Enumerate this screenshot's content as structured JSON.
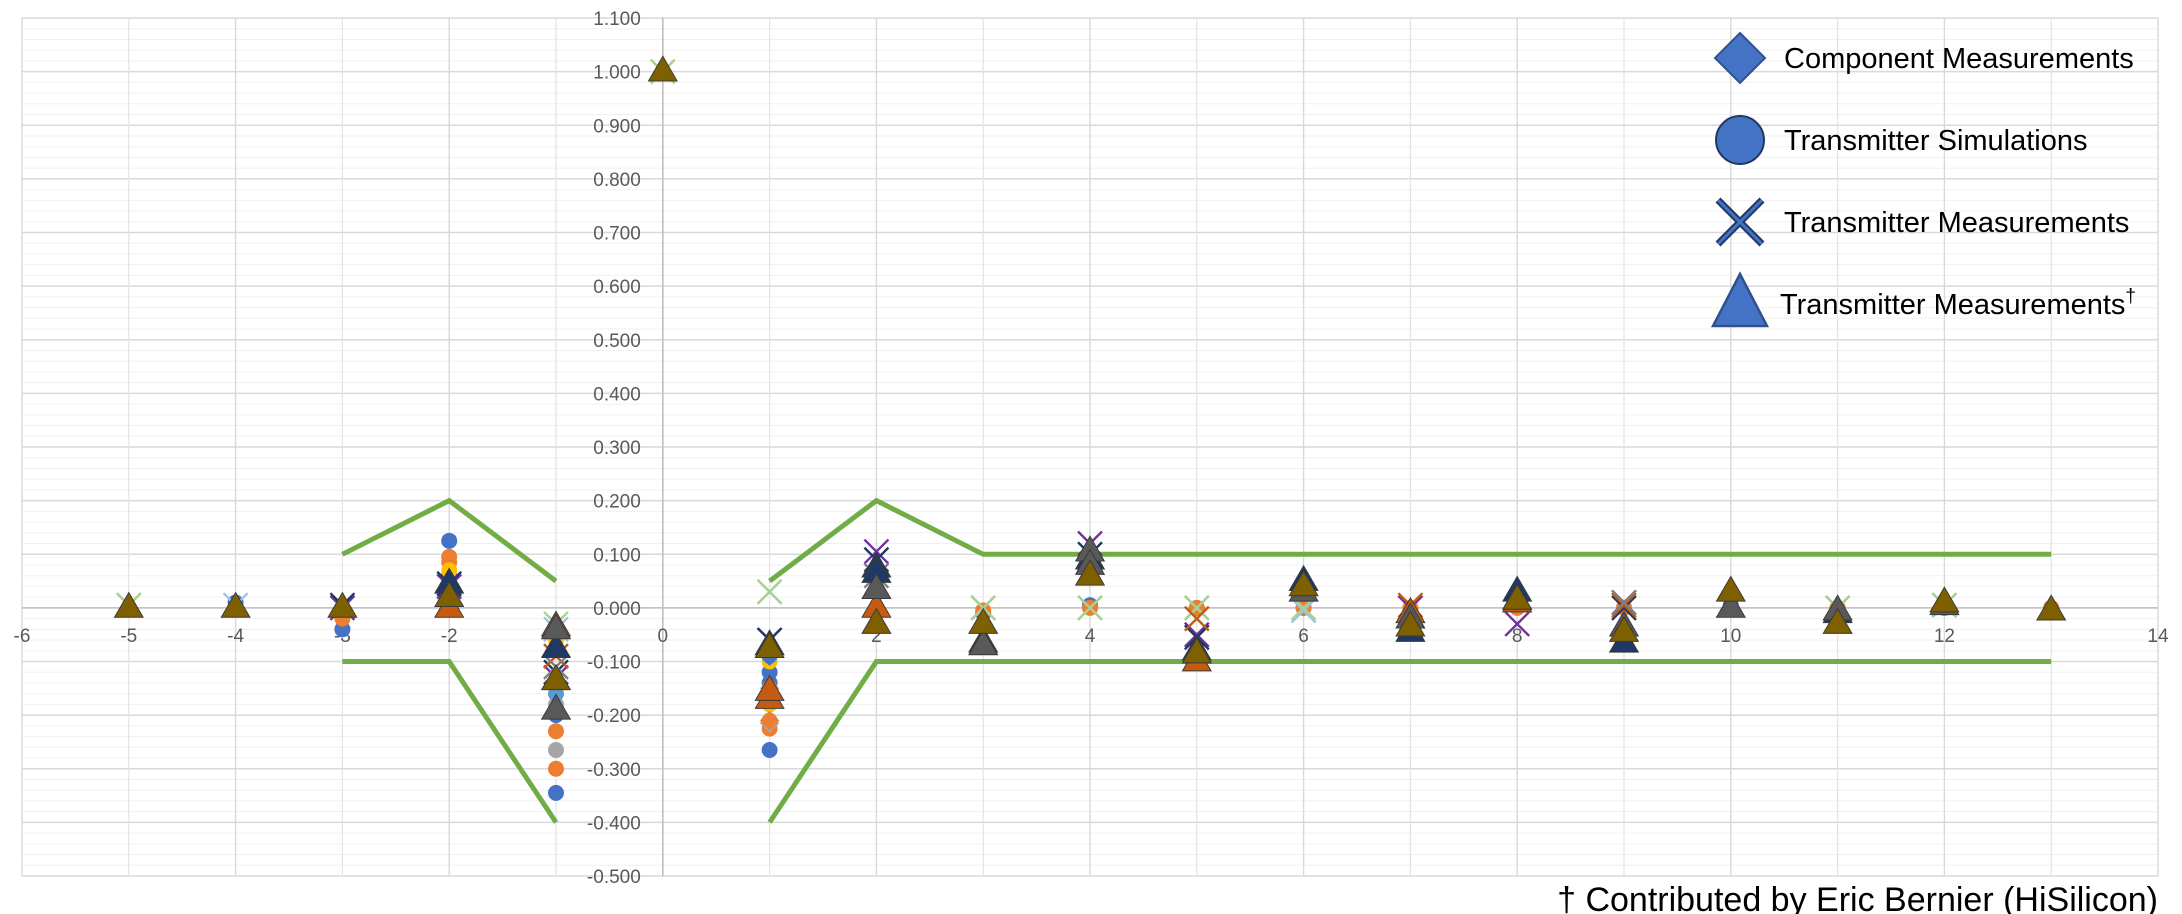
{
  "chart_data": {
    "type": "scatter",
    "title": "",
    "xlabel": "",
    "ylabel": "",
    "xlim": [
      -6,
      14
    ],
    "ylim": [
      -0.5,
      1.1
    ],
    "x_major_step": 2,
    "y_major_step": 0.1,
    "y_minor_step": 0.02,
    "x_tick_labels": [
      "-6",
      "-5",
      "-4",
      "-3",
      "-2",
      "0",
      "2",
      "4",
      "6",
      "8",
      "10",
      "12",
      "14"
    ],
    "y_tick_labels": [
      "-0.500",
      "-0.400",
      "-0.300",
      "-0.200",
      "-0.100",
      "0.000",
      "0.100",
      "0.200",
      "0.300",
      "0.400",
      "0.500",
      "0.600",
      "0.700",
      "0.800",
      "0.900",
      "1.000",
      "1.100"
    ],
    "grid": true,
    "legend_position": "top-right",
    "legend": [
      {
        "label": "Component Measurements",
        "marker": "diamond",
        "color": "#4472c4",
        "stroke": "#2f528f"
      },
      {
        "label": "Transmitter Simulations",
        "marker": "circle",
        "color": "#4472c4",
        "stroke": "#1f3864"
      },
      {
        "label": "Transmitter Measurements",
        "marker": "x",
        "color": "#203864",
        "stroke": "#203864"
      },
      {
        "label": "Transmitter Measurements",
        "superscript": "†",
        "marker": "triangle",
        "color": "#4472c4",
        "stroke": "#2f528f"
      }
    ],
    "limit_lines": {
      "color": "#70ad47",
      "upper": [
        [
          [
            -3,
            0.1
          ],
          [
            -2,
            0.2
          ],
          [
            -1,
            0.05
          ]
        ],
        [
          [
            1,
            0.05
          ],
          [
            2,
            0.2
          ],
          [
            3,
            0.1
          ],
          [
            13,
            0.1
          ]
        ]
      ],
      "lower": [
        [
          [
            -3,
            -0.1
          ],
          [
            -2,
            -0.1
          ],
          [
            -1,
            -0.4
          ]
        ],
        [
          [
            1,
            -0.4
          ],
          [
            2,
            -0.1
          ],
          [
            13,
            -0.1
          ]
        ]
      ]
    },
    "series": [
      {
        "marker": "circle",
        "color": "#4472c4",
        "points": [
          [
            -4,
            0.01
          ],
          [
            -3,
            -0.04
          ],
          [
            -2,
            0.125
          ],
          [
            -2,
            0.06
          ],
          [
            -1,
            -0.345
          ],
          [
            -1,
            -0.2
          ],
          [
            1,
            -0.265
          ],
          [
            1,
            -0.12
          ],
          [
            1,
            -0.14
          ],
          [
            3,
            -0.01
          ],
          [
            4,
            0.005
          ],
          [
            5,
            0.0
          ],
          [
            6,
            0.0
          ],
          [
            7,
            -0.005
          ],
          [
            8,
            0.01
          ],
          [
            9,
            0.0
          ],
          [
            10,
            0.005
          ],
          [
            11,
            0.0
          ],
          [
            12,
            0.0
          ],
          [
            13,
            0.0
          ]
        ]
      },
      {
        "marker": "circle",
        "color": "#ed7d31",
        "points": [
          [
            -3,
            -0.02
          ],
          [
            -2,
            0.095
          ],
          [
            -2,
            0.085
          ],
          [
            -1,
            -0.3
          ],
          [
            -1,
            -0.23
          ],
          [
            -1,
            -0.05
          ],
          [
            1,
            -0.225
          ],
          [
            1,
            -0.15
          ],
          [
            3,
            -0.005
          ],
          [
            4,
            0.0
          ],
          [
            5,
            0.0
          ],
          [
            6,
            0.0
          ],
          [
            7,
            0.0
          ],
          [
            8,
            0.0
          ],
          [
            9,
            0.0
          ],
          [
            10,
            0.0
          ],
          [
            11,
            0.0
          ],
          [
            12,
            0.0
          ],
          [
            13,
            0.0
          ]
        ]
      },
      {
        "marker": "circle",
        "color": "#a5a5a5",
        "points": [
          [
            -2,
            0.05
          ],
          [
            -1,
            -0.265
          ],
          [
            -1,
            -0.18
          ],
          [
            1,
            -0.21
          ],
          [
            1,
            -0.155
          ]
        ]
      },
      {
        "marker": "circle",
        "color": "#ffc000",
        "points": [
          [
            -2,
            0.07
          ],
          [
            -1,
            -0.06
          ],
          [
            1,
            -0.18
          ],
          [
            1,
            -0.1
          ]
        ]
      },
      {
        "marker": "circle",
        "color": "#5b9bd5",
        "points": [
          [
            -1,
            -0.16
          ],
          [
            1,
            -0.09
          ],
          [
            1,
            -0.07
          ]
        ]
      },
      {
        "marker": "diamond",
        "color": "#4472c4",
        "points": [
          [
            -1,
            -0.04
          ],
          [
            1,
            -0.09
          ],
          [
            1,
            -0.08
          ]
        ]
      },
      {
        "marker": "diamond",
        "color": "#a5a5a5",
        "points": [
          [
            1,
            -0.215
          ],
          [
            1,
            -0.15
          ]
        ]
      },
      {
        "marker": "diamond",
        "color": "#ed7d31",
        "points": [
          [
            1,
            -0.21
          ]
        ]
      },
      {
        "marker": "x",
        "color": "#9dc3e6",
        "points": [
          [
            -5,
            0.005
          ],
          [
            -4,
            0.005
          ],
          [
            -1,
            -0.04
          ],
          [
            1,
            0.03
          ],
          [
            3,
            0.0
          ],
          [
            4,
            0.0
          ],
          [
            5,
            0.0
          ],
          [
            6,
            -0.005
          ],
          [
            7,
            0.0
          ],
          [
            9,
            0.005
          ],
          [
            11,
            0.0
          ],
          [
            12,
            0.005
          ]
        ]
      },
      {
        "marker": "x",
        "color": "#a9d18e",
        "points": [
          [
            -5,
            0.005
          ],
          [
            0,
            1.0
          ],
          [
            -1,
            -0.03
          ],
          [
            1,
            0.03
          ],
          [
            3,
            0.0
          ],
          [
            4,
            0.0
          ],
          [
            5,
            0.0
          ],
          [
            6,
            0.0
          ],
          [
            7,
            0.0
          ],
          [
            11,
            0.0
          ],
          [
            12,
            0.005
          ]
        ]
      },
      {
        "marker": "x",
        "color": "#7030a0",
        "points": [
          [
            -3,
            0.0
          ],
          [
            -2,
            0.04
          ],
          [
            -1,
            -0.13
          ],
          [
            1,
            -0.06
          ],
          [
            2,
            0.105
          ],
          [
            4,
            0.12
          ],
          [
            5,
            -0.05
          ],
          [
            7,
            0.0
          ],
          [
            8,
            -0.03
          ],
          [
            9,
            0.01
          ]
        ]
      },
      {
        "marker": "x",
        "color": "#203864",
        "points": [
          [
            -3,
            0.005
          ],
          [
            -2,
            0.045
          ],
          [
            -1,
            -0.12
          ],
          [
            1,
            -0.06
          ],
          [
            2,
            0.09
          ],
          [
            4,
            0.1
          ],
          [
            5,
            -0.055
          ],
          [
            9,
            0.0
          ]
        ]
      },
      {
        "marker": "x",
        "color": "#c55a11",
        "points": [
          [
            -1,
            -0.09
          ],
          [
            5,
            -0.02
          ],
          [
            7,
            0.005
          ],
          [
            9,
            0.005
          ]
        ]
      },
      {
        "marker": "x",
        "color": "#7f7f7f",
        "points": [
          [
            -1,
            -0.11
          ],
          [
            2,
            0.06
          ],
          [
            9,
            0.01
          ]
        ]
      },
      {
        "marker": "triangle",
        "color": "#c55a11",
        "points": [
          [
            -2,
            0.0
          ],
          [
            -1,
            -0.035
          ],
          [
            1,
            -0.17
          ],
          [
            1,
            -0.155
          ],
          [
            2,
            0.0
          ],
          [
            5,
            -0.1
          ],
          [
            7,
            -0.01
          ],
          [
            8,
            0.01
          ]
        ]
      },
      {
        "marker": "triangle",
        "color": "#203864",
        "points": [
          [
            -2,
            0.045
          ],
          [
            -1,
            -0.075
          ],
          [
            1,
            -0.07
          ],
          [
            2,
            0.075
          ],
          [
            2,
            0.065
          ],
          [
            3,
            -0.065
          ],
          [
            4,
            0.09
          ],
          [
            5,
            -0.08
          ],
          [
            6,
            0.05
          ],
          [
            7,
            -0.045
          ],
          [
            8,
            0.03
          ],
          [
            9,
            -0.065
          ],
          [
            11,
            -0.01
          ]
        ]
      },
      {
        "marker": "triangle",
        "color": "#595959",
        "points": [
          [
            -1,
            -0.19
          ],
          [
            -1,
            -0.04
          ],
          [
            2,
            0.035
          ],
          [
            3,
            -0.07
          ],
          [
            4,
            0.105
          ],
          [
            4,
            0.08
          ],
          [
            6,
            0.03
          ],
          [
            7,
            -0.02
          ],
          [
            8,
            0.015
          ],
          [
            9,
            -0.035
          ],
          [
            10,
            0.0
          ],
          [
            11,
            -0.005
          ],
          [
            12,
            0.005
          ]
        ]
      },
      {
        "marker": "triangle",
        "color": "#7f6000",
        "points": [
          [
            -5,
            0.0
          ],
          [
            -4,
            0.0
          ],
          [
            -3,
            0.0
          ],
          [
            -2,
            0.02
          ],
          [
            -1,
            -0.135
          ],
          [
            0,
            1.0
          ],
          [
            1,
            -0.075
          ],
          [
            2,
            -0.03
          ],
          [
            3,
            -0.03
          ],
          [
            4,
            0.06
          ],
          [
            5,
            -0.085
          ],
          [
            6,
            0.04
          ],
          [
            7,
            -0.035
          ],
          [
            8,
            0.015
          ],
          [
            9,
            -0.045
          ],
          [
            10,
            0.03
          ],
          [
            11,
            -0.03
          ],
          [
            12,
            0.01
          ],
          [
            13,
            -0.005
          ]
        ]
      }
    ]
  },
  "footnote": {
    "symbol": "†",
    "text": "Contributed by Eric Bernier (HiSilicon)"
  }
}
